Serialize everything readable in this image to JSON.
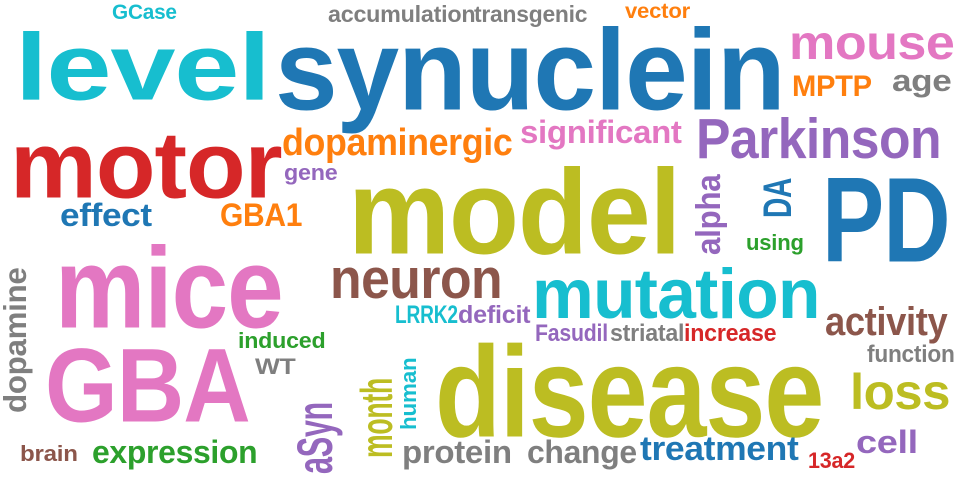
{
  "palette": {
    "teal": "#17becf",
    "blue": "#1f77b4",
    "red": "#d62728",
    "olive": "#bcbd22",
    "pink": "#e377c2",
    "purple": "#9467bd",
    "brown": "#8c564b",
    "orange": "#ff7f0e",
    "green": "#2ca02c",
    "gray": "#7f7f7f"
  },
  "words": [
    {
      "text": "level",
      "color": "#17becf"
    },
    {
      "text": "synuclein",
      "color": "#1f77b4"
    },
    {
      "text": "motor",
      "color": "#d62728"
    },
    {
      "text": "model",
      "color": "#bcbd22"
    },
    {
      "text": "mice",
      "color": "#e377c2"
    },
    {
      "text": "GBA",
      "color": "#e377c2"
    },
    {
      "text": "disease",
      "color": "#bcbd22"
    },
    {
      "text": "PD",
      "color": "#1f77b4"
    },
    {
      "text": "mutation",
      "color": "#17becf"
    },
    {
      "text": "Parkinson",
      "color": "#9467bd"
    },
    {
      "text": "mouse",
      "color": "#e377c2"
    },
    {
      "text": "neuron",
      "color": "#8c564b"
    },
    {
      "text": "dopaminergic",
      "color": "#ff7f0e"
    },
    {
      "text": "significant",
      "color": "#e377c2"
    },
    {
      "text": "aSyn",
      "color": "#9467bd"
    },
    {
      "text": "month",
      "color": "#bcbd22"
    },
    {
      "text": "dopamine",
      "color": "#7f7f7f"
    },
    {
      "text": "alpha",
      "color": "#9467bd"
    },
    {
      "text": "activity",
      "color": "#8c564b"
    },
    {
      "text": "loss",
      "color": "#bcbd22"
    },
    {
      "text": "treatment",
      "color": "#1f77b4"
    },
    {
      "text": "expression",
      "color": "#2ca02c"
    },
    {
      "text": "protein",
      "color": "#7f7f7f"
    },
    {
      "text": "change",
      "color": "#7f7f7f"
    },
    {
      "text": "effect",
      "color": "#1f77b4"
    },
    {
      "text": "GBA1",
      "color": "#ff7f0e"
    },
    {
      "text": "accumulation",
      "color": "#7f7f7f"
    },
    {
      "text": "transgenic",
      "color": "#7f7f7f"
    },
    {
      "text": "vector",
      "color": "#ff7f0e"
    },
    {
      "text": "GCase",
      "color": "#17becf"
    },
    {
      "text": "MPTP",
      "color": "#ff7f0e"
    },
    {
      "text": "age",
      "color": "#7f7f7f"
    },
    {
      "text": "gene",
      "color": "#9467bd"
    },
    {
      "text": "DA",
      "color": "#1f77b4"
    },
    {
      "text": "using",
      "color": "#2ca02c"
    },
    {
      "text": "LRRK2",
      "color": "#17becf"
    },
    {
      "text": "deficit",
      "color": "#9467bd"
    },
    {
      "text": "Fasudil",
      "color": "#9467bd"
    },
    {
      "text": "striatal",
      "color": "#7f7f7f"
    },
    {
      "text": "increase",
      "color": "#d62728"
    },
    {
      "text": "induced",
      "color": "#2ca02c"
    },
    {
      "text": "WT",
      "color": "#7f7f7f"
    },
    {
      "text": "function",
      "color": "#7f7f7f"
    },
    {
      "text": "cell",
      "color": "#9467bd"
    },
    {
      "text": "human",
      "color": "#17becf"
    },
    {
      "text": "brain",
      "color": "#8c564b"
    },
    {
      "text": "13a2",
      "color": "#d62728"
    }
  ]
}
